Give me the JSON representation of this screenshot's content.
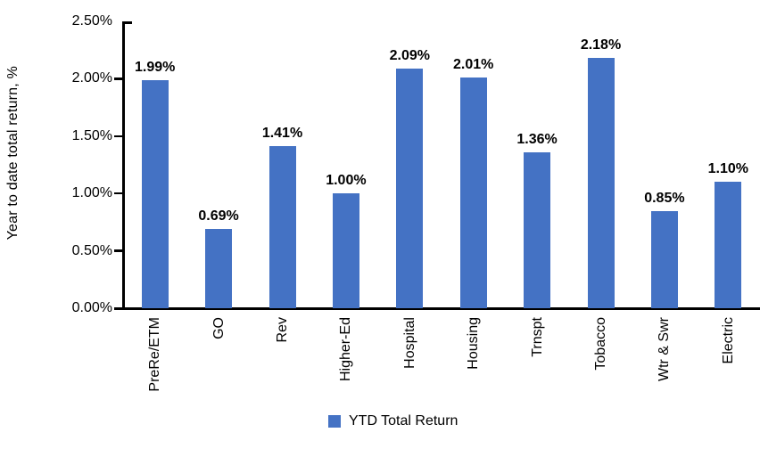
{
  "chart_data": {
    "type": "bar",
    "title": "",
    "ylabel": "Year to date total return, %",
    "xlabel": "",
    "categories": [
      "PreRe/ETM",
      "GO",
      "Rev",
      "Higher-Ed",
      "Hospital",
      "Housing",
      "Trnspt",
      "Tobacco",
      "Wtr & Swr",
      "Electric"
    ],
    "values": [
      1.99,
      0.69,
      1.41,
      1.0,
      2.09,
      2.01,
      1.36,
      2.18,
      0.85,
      1.1
    ],
    "value_labels": [
      "1.99%",
      "0.69%",
      "1.41%",
      "1.00%",
      "2.09%",
      "2.01%",
      "1.36%",
      "2.18%",
      "0.85%",
      "1.10%"
    ],
    "yticks": [
      "0.00%",
      "0.50%",
      "1.00%",
      "1.50%",
      "2.00%",
      "2.50%"
    ],
    "ylim": [
      0,
      2.5
    ],
    "grid": false,
    "legend": "YTD Total Return",
    "legend_position": "bottom",
    "bar_color": "#4472C4",
    "axis_color": "#000000",
    "text_color": "#000000"
  }
}
